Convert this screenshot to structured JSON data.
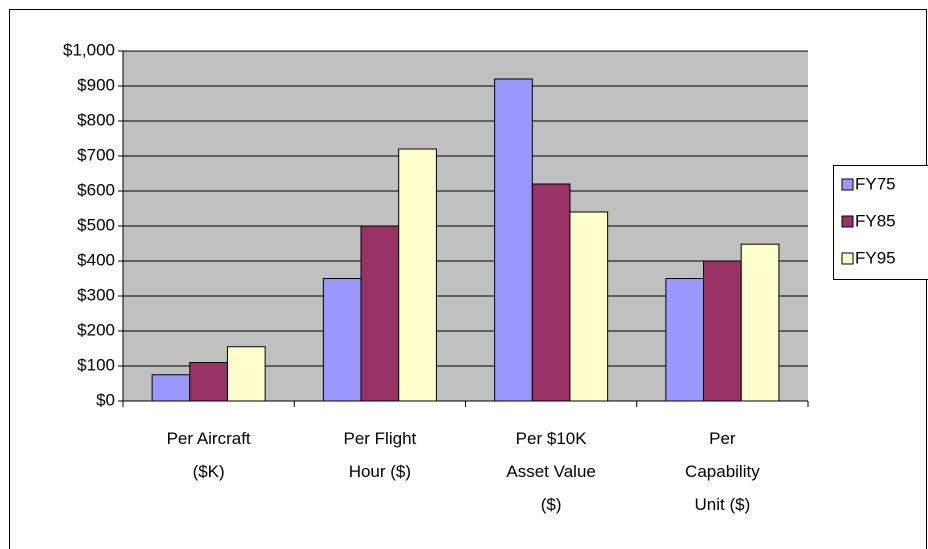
{
  "chart_data": {
    "type": "bar",
    "categories": [
      "Per Aircraft ($K)",
      "Per Flight Hour ($)",
      "Per $10K Asset Value ($)",
      "Per Capability Unit ($)"
    ],
    "series": [
      {
        "name": "FY75",
        "color": "#9999ff",
        "values": [
          75,
          350,
          920,
          350
        ]
      },
      {
        "name": "FY85",
        "color": "#993366",
        "values": [
          110,
          500,
          620,
          400
        ]
      },
      {
        "name": "FY95",
        "color": "#ffffcc",
        "values": [
          155,
          720,
          540,
          448
        ]
      }
    ],
    "ylim": [
      0,
      1000
    ],
    "yticks": [
      {
        "value": 0,
        "label": "$0"
      },
      {
        "value": 100,
        "label": "$100"
      },
      {
        "value": 200,
        "label": "$200"
      },
      {
        "value": 300,
        "label": "$300"
      },
      {
        "value": 400,
        "label": "$400"
      },
      {
        "value": 500,
        "label": "$500"
      },
      {
        "value": 600,
        "label": "$600"
      },
      {
        "value": 700,
        "label": "$700"
      },
      {
        "value": 800,
        "label": "$800"
      },
      {
        "value": 900,
        "label": "$900"
      },
      {
        "value": 1000,
        "label": "$1,000"
      }
    ],
    "grid": true,
    "legend": "right"
  }
}
